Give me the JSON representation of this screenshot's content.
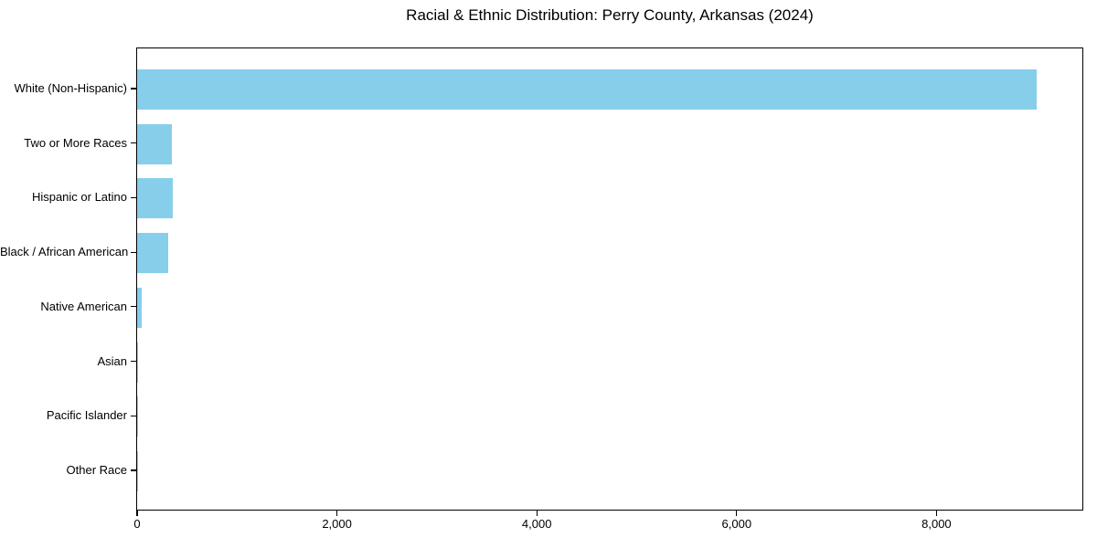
{
  "chart_data": {
    "type": "bar",
    "orientation": "horizontal",
    "title": "Racial & Ethnic Distribution: Perry County, Arkansas (2024)",
    "categories": [
      "White (Non-Hispanic)",
      "Two or More Races",
      "Hispanic or Latino",
      "Black / African American",
      "Native American",
      "Asian",
      "Pacific Islander",
      "Other Race"
    ],
    "values": [
      9000,
      350,
      360,
      315,
      45,
      12,
      2,
      3
    ],
    "bar_color": "#87CEEB",
    "xlabel": "",
    "ylabel": "",
    "xlim": [
      0,
      9460
    ],
    "xticks": [
      0,
      2000,
      4000,
      6000,
      8000
    ],
    "xtick_labels": [
      "0",
      "2,000",
      "4,000",
      "6,000",
      "8,000"
    ],
    "grid": false,
    "legend": null,
    "background_color": "#ffffff",
    "spine_color": "#000000",
    "text_color": "#000000"
  }
}
